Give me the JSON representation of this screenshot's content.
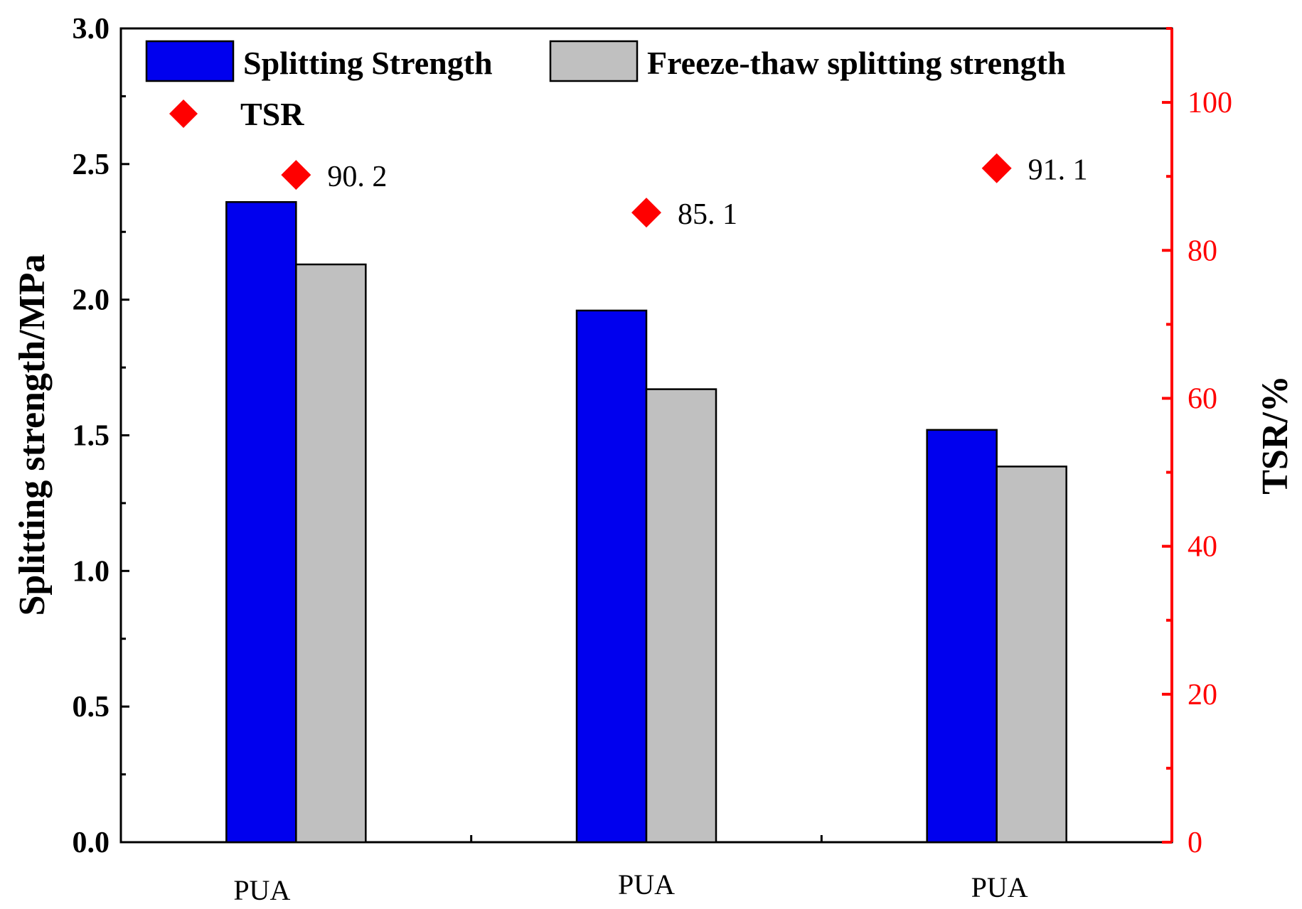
{
  "chart_data": {
    "type": "bar",
    "categories": [
      "PUA",
      "PUA",
      "PUA"
    ],
    "series": [
      {
        "name": "Splitting Strength",
        "axis": "left",
        "color": "#0000ee",
        "values": [
          2.36,
          1.96,
          1.52
        ]
      },
      {
        "name": "Freeze-thaw splitting strength",
        "axis": "left",
        "color": "#c0c0c0",
        "values": [
          2.13,
          1.67,
          1.385
        ]
      },
      {
        "name": "TSR",
        "axis": "right",
        "kind": "scatter",
        "marker": "diamond",
        "color": "#ff0000",
        "values": [
          90.2,
          85.1,
          91.1
        ]
      }
    ],
    "data_labels": [
      "90. 2",
      "85. 1",
      "91. 1"
    ],
    "ylabel": "Splitting strength/MPa",
    "y2label": "TSR/%",
    "ylim": [
      0,
      3.0
    ],
    "y2lim": [
      0,
      110
    ],
    "yticks": [
      "0.0",
      "0.5",
      "1.0",
      "1.5",
      "2.0",
      "2.5",
      "3.0"
    ],
    "y2ticks": [
      "0",
      "20",
      "40",
      "60",
      "80",
      "100"
    ],
    "legend": {
      "entries": [
        "Splitting Strength",
        "Freeze-thaw splitting strength",
        "TSR"
      ],
      "placement": "top"
    }
  }
}
